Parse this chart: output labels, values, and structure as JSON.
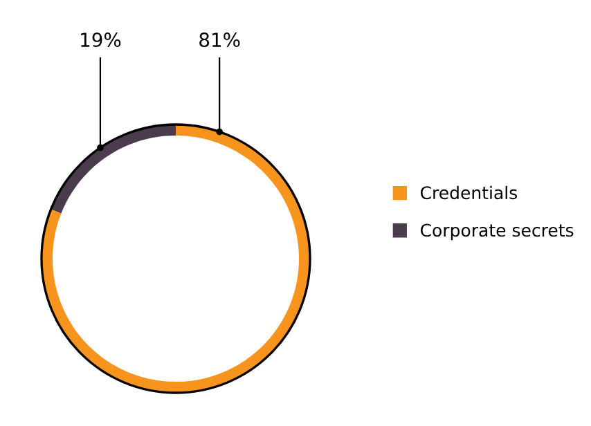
{
  "chart_data": {
    "type": "donut",
    "categories": [
      "Credentials",
      "Corporate secrets"
    ],
    "values": [
      81,
      19
    ],
    "colors": [
      "#f7941d",
      "#4a3c4c"
    ],
    "value_labels": [
      "81%",
      "19%"
    ],
    "legend": "right"
  }
}
